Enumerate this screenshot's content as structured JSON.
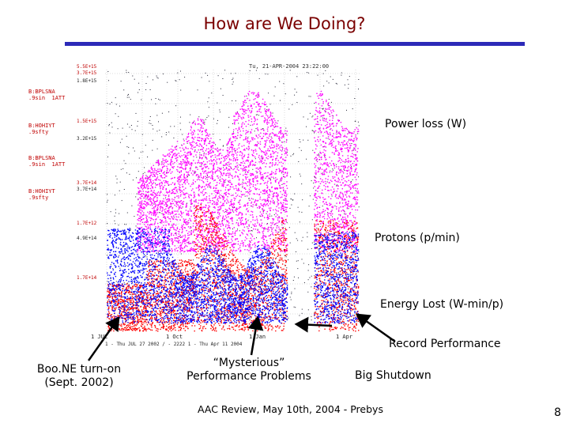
{
  "slide": {
    "title": "How are We Doing?",
    "footer": "AAC Review, May 10th, 2004 - Prebys",
    "page_number": "8"
  },
  "plot": {
    "header": "Tu, 21-APR-2004 23:22:00",
    "channels": [
      {
        "name": "B:BPLSNA",
        "sub": ".9sin  1ATT"
      },
      {
        "name": "B:HOHIYT",
        "sub": ".9sfty"
      },
      {
        "name": "B:BPLSNA",
        "sub": ".9sin  1ATT"
      },
      {
        "name": "B:HOHIYT",
        "sub": ".9sfty"
      }
    ],
    "axis_labels": [
      "5.5E+15",
      "3.7E+15",
      "1.8E+15",
      "1.5E+15",
      "3.2E+15",
      "3.7E+14",
      "3.7E+14",
      "1.7E+12",
      "4.9E+14",
      "1.7E+14"
    ],
    "x_ticks": [
      "1 JUL",
      "1 Oct",
      "1 Jan",
      "1 Apr"
    ],
    "footer": "1 - Thu JUL 27 2002  / - 2222   1  - Thu Apr 11 2004"
  },
  "callouts": {
    "power_loss": "Power loss (W)",
    "protons": "Protons (p/min)",
    "energy_lost": "Energy Lost (W-min/p)",
    "record": "Record Performance",
    "boone_line1": "Boo.NE turn-on",
    "boone_line2": "(Sept. 2002)",
    "mysterious_line1": "“Mysterious”",
    "mysterious_line2": "Performance Problems",
    "shutdown": "Big Shutdown"
  },
  "colors": {
    "title": "#7a0000",
    "rule": "#2c2ab8",
    "magenta": "#ff00ff",
    "red": "#ff0000",
    "blue": "#0000ff"
  }
}
